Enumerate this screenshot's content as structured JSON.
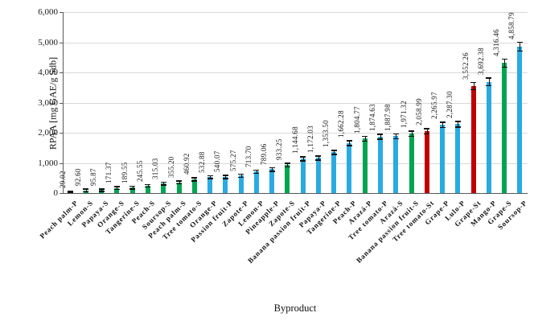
{
  "chart_data": {
    "type": "bar",
    "title": "",
    "xlabel": "Byproduct",
    "ylabel": "RPAA [mg GAE/g Sdb]",
    "ylim": [
      0,
      6000
    ],
    "ytick_step": 1000,
    "yticks_display": [
      "0",
      "1,000",
      "2,000",
      "3,000",
      "4,000",
      "5,000",
      "6,000"
    ],
    "grid": "horizontal-light-gray",
    "legend": "none",
    "error_bars_visible": true,
    "value_labels_rotation_deg": 90,
    "category_labels_rotation_deg": 45,
    "palette": {
      "cyan": "#29ABE2",
      "green": "#00A551",
      "dark_red": "#C00000"
    },
    "bars": [
      {
        "category": "Peach palm-P",
        "value": 29.02,
        "label": "29.02",
        "color": "cyan"
      },
      {
        "category": "Lemon-S",
        "value": 92.6,
        "label": "92.60",
        "color": "green"
      },
      {
        "category": "Papaya-S",
        "value": 95.87,
        "label": "95.87",
        "color": "green"
      },
      {
        "category": "Orange-S",
        "value": 171.37,
        "label": "171.37",
        "color": "green"
      },
      {
        "category": "Tangerine-S",
        "value": 189.55,
        "label": "189.55",
        "color": "green"
      },
      {
        "category": "Peach-S",
        "value": 245.55,
        "label": "245.55",
        "color": "green"
      },
      {
        "category": "Soursop-S",
        "value": 315.03,
        "label": "315.03",
        "color": "green"
      },
      {
        "category": "Peach palm-S",
        "value": 355.2,
        "label": "355.20",
        "color": "green"
      },
      {
        "category": "Tree tomato-S",
        "value": 460.92,
        "label": "460.92",
        "color": "green"
      },
      {
        "category": "Orange-P",
        "value": 532.88,
        "label": "532.88",
        "color": "cyan"
      },
      {
        "category": "Passion fruit-P",
        "value": 540.07,
        "label": "540.07",
        "color": "cyan"
      },
      {
        "category": "Zapote-P",
        "value": 575.27,
        "label": "575.27",
        "color": "cyan"
      },
      {
        "category": "Lemon-P",
        "value": 713.7,
        "label": "713.70",
        "color": "cyan"
      },
      {
        "category": "Pineapple-P",
        "value": 789.06,
        "label": "789.06",
        "color": "cyan"
      },
      {
        "category": "Zapote-S",
        "value": 933.25,
        "label": "933.25",
        "color": "green"
      },
      {
        "category": "Banana passion fruit-P",
        "value": 1144.68,
        "label": "1,144.68",
        "color": "cyan"
      },
      {
        "category": "Papaya-P",
        "value": 1172.03,
        "label": "1,172.03",
        "color": "cyan"
      },
      {
        "category": "Tangerine-P",
        "value": 1353.5,
        "label": "1,353.50",
        "color": "cyan"
      },
      {
        "category": "Peach-P",
        "value": 1662.28,
        "label": "1,662.28",
        "color": "cyan"
      },
      {
        "category": "Arazá-P",
        "value": 1804.77,
        "label": "1,804.77",
        "color": "green"
      },
      {
        "category": "Tree tomato-P",
        "value": 1874.63,
        "label": "1,874.63",
        "color": "cyan"
      },
      {
        "category": "Arazá-S",
        "value": 1887.98,
        "label": "1,887.98",
        "color": "cyan"
      },
      {
        "category": "Banana passion fruit-S",
        "value": 1971.32,
        "label": "1,971.32",
        "color": "green"
      },
      {
        "category": "Tree tomato-St",
        "value": 2058.99,
        "label": "2,058.99",
        "color": "dark_red"
      },
      {
        "category": "Grape-P",
        "value": 2265.97,
        "label": "2,265.97",
        "color": "cyan"
      },
      {
        "category": "Lulo-P",
        "value": 2287.3,
        "label": "2,287.30",
        "color": "cyan"
      },
      {
        "category": "Grape-St",
        "value": 3552.26,
        "label": "3,552.26",
        "color": "dark_red"
      },
      {
        "category": "Mango-P",
        "value": 3692.38,
        "label": "3,692.38",
        "color": "cyan"
      },
      {
        "category": "Grape-S",
        "value": 4316.46,
        "label": "4,316.46",
        "color": "green"
      },
      {
        "category": "Soursop-P",
        "value": 4858.79,
        "label": "4,858.79",
        "color": "cyan"
      }
    ]
  }
}
